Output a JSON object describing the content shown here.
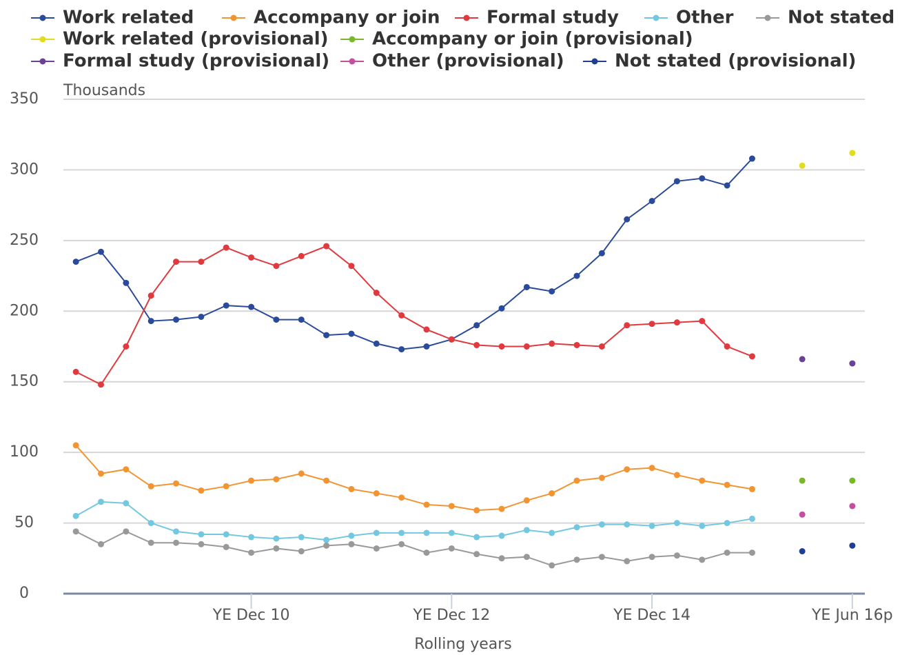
{
  "chart_data": {
    "type": "line",
    "y_axis_label": "Thousands",
    "x_axis_label": "Rolling years",
    "categories": [
      null,
      null,
      null,
      null,
      null,
      null,
      null,
      "YE Dec 10",
      null,
      null,
      null,
      null,
      null,
      null,
      null,
      "YE Dec 12",
      null,
      null,
      null,
      null,
      null,
      null,
      null,
      "YE Dec 14",
      null,
      null,
      null,
      null,
      null,
      null,
      null,
      "YE Jun 16p"
    ],
    "series": [
      {
        "name": "Work related",
        "color": "#2a4a9a",
        "values": [
          235,
          242,
          220,
          193,
          194,
          196,
          204,
          203,
          194,
          194,
          183,
          184,
          177,
          173,
          175,
          180,
          190,
          202,
          217,
          214,
          225,
          241,
          265,
          278,
          292,
          294,
          289,
          308,
          null,
          null,
          null,
          null
        ]
      },
      {
        "name": "Accompany or join",
        "color": "#f39433",
        "values": [
          105,
          85,
          88,
          76,
          78,
          73,
          76,
          80,
          81,
          85,
          80,
          74,
          71,
          68,
          63,
          62,
          59,
          60,
          66,
          71,
          80,
          82,
          88,
          89,
          84,
          80,
          77,
          74,
          null,
          null,
          null,
          null
        ]
      },
      {
        "name": "Formal study",
        "color": "#e0393e",
        "values": [
          157,
          148,
          175,
          211,
          235,
          235,
          245,
          238,
          232,
          239,
          246,
          232,
          213,
          197,
          187,
          180,
          176,
          175,
          175,
          177,
          176,
          175,
          190,
          191,
          192,
          193,
          175,
          168,
          null,
          null,
          null,
          null
        ]
      },
      {
        "name": "Other",
        "color": "#73c8e0",
        "values": [
          55,
          65,
          64,
          50,
          44,
          42,
          42,
          40,
          39,
          40,
          38,
          41,
          43,
          43,
          43,
          43,
          40,
          41,
          45,
          43,
          47,
          49,
          49,
          48,
          50,
          48,
          50,
          53,
          null,
          null,
          null,
          null
        ]
      },
      {
        "name": "Not stated",
        "color": "#999999",
        "values": [
          44,
          35,
          44,
          36,
          36,
          35,
          33,
          29,
          32,
          30,
          34,
          35,
          32,
          35,
          29,
          32,
          28,
          25,
          26,
          20,
          24,
          26,
          23,
          26,
          27,
          24,
          29,
          29,
          null,
          null,
          null,
          null
        ]
      },
      {
        "name": "Work related (provisional)",
        "color": "#e3dc1e",
        "values": [
          null,
          null,
          null,
          null,
          null,
          null,
          null,
          null,
          null,
          null,
          null,
          null,
          null,
          null,
          null,
          null,
          null,
          null,
          null,
          null,
          null,
          null,
          null,
          null,
          null,
          null,
          null,
          null,
          null,
          303,
          null,
          312
        ]
      },
      {
        "name": "Accompany or join (provisional)",
        "color": "#78b82a",
        "values": [
          null,
          null,
          null,
          null,
          null,
          null,
          null,
          null,
          null,
          null,
          null,
          null,
          null,
          null,
          null,
          null,
          null,
          null,
          null,
          null,
          null,
          null,
          null,
          null,
          null,
          null,
          null,
          null,
          null,
          80,
          null,
          80
        ]
      },
      {
        "name": "Formal study (provisional)",
        "color": "#6a4294",
        "values": [
          null,
          null,
          null,
          null,
          null,
          null,
          null,
          null,
          null,
          null,
          null,
          null,
          null,
          null,
          null,
          null,
          null,
          null,
          null,
          null,
          null,
          null,
          null,
          null,
          null,
          null,
          null,
          null,
          null,
          166,
          null,
          163
        ]
      },
      {
        "name": "Other (provisional)",
        "color": "#c44fa0",
        "values": [
          null,
          null,
          null,
          null,
          null,
          null,
          null,
          null,
          null,
          null,
          null,
          null,
          null,
          null,
          null,
          null,
          null,
          null,
          null,
          null,
          null,
          null,
          null,
          null,
          null,
          null,
          null,
          null,
          null,
          56,
          null,
          62
        ]
      },
      {
        "name": "Not stated (provisional)",
        "color": "#1f3f8f",
        "values": [
          null,
          null,
          null,
          null,
          null,
          null,
          null,
          null,
          null,
          null,
          null,
          null,
          null,
          null,
          null,
          null,
          null,
          null,
          null,
          null,
          null,
          null,
          null,
          null,
          null,
          null,
          null,
          null,
          null,
          30,
          null,
          34
        ]
      }
    ],
    "ylim": [
      0,
      350
    ],
    "yticks": [
      0,
      50,
      100,
      150,
      200,
      250,
      300,
      350
    ],
    "grid": true,
    "legend": "top"
  }
}
